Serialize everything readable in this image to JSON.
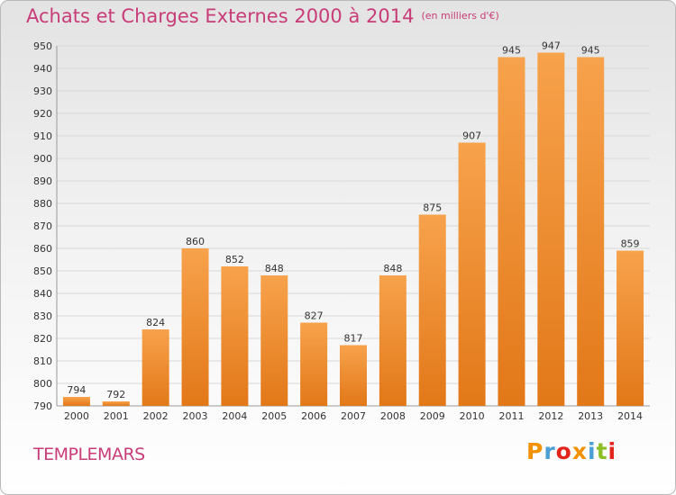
{
  "header": {
    "title": "Achats et Charges Externes 2000 à 2014",
    "subtitle": "(en milliers d'€)"
  },
  "footer": {
    "city": "TEMPLEMARS",
    "logo": "Proxiti"
  },
  "colors": {
    "accent": "#c83c78",
    "bar_top": "#f7a24c",
    "bar_bottom": "#e27818",
    "grid": "#d8d8d8",
    "logo_letters": [
      "#f39200",
      "#4a9fd4",
      "#e2241b",
      "#f39200",
      "#4a9fd4",
      "#8cbf26",
      "#e2241b"
    ]
  },
  "chart_data": {
    "type": "bar",
    "title": "Achats et Charges Externes 2000 à 2014",
    "subtitle": "(en milliers d'€)",
    "categories": [
      "2000",
      "2001",
      "2002",
      "2003",
      "2004",
      "2005",
      "2006",
      "2007",
      "2008",
      "2009",
      "2010",
      "2011",
      "2012",
      "2013",
      "2014"
    ],
    "values": [
      794,
      792,
      824,
      860,
      852,
      848,
      827,
      817,
      848,
      875,
      907,
      945,
      947,
      945,
      859
    ],
    "ylim": [
      790,
      950
    ],
    "yticks": [
      790,
      800,
      810,
      820,
      830,
      840,
      850,
      860,
      870,
      880,
      890,
      900,
      910,
      920,
      930,
      940,
      950
    ],
    "xlabel": "",
    "ylabel": "",
    "grid": true
  }
}
